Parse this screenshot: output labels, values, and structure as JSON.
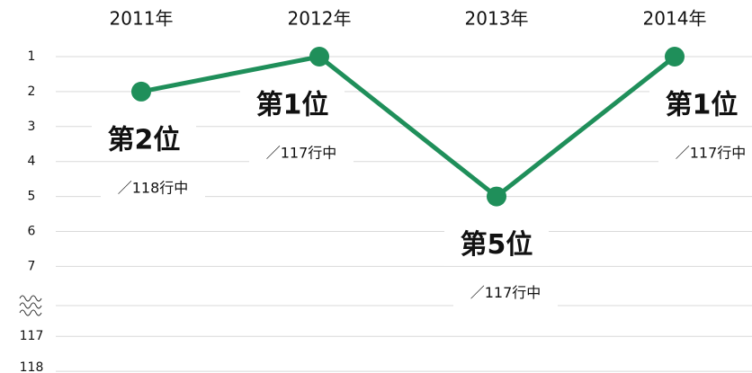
{
  "chart_data": {
    "type": "line",
    "categories": [
      "2011年",
      "2012年",
      "2013年",
      "2014年"
    ],
    "series": [
      {
        "color": "#1f8f5a",
        "values": [
          2,
          1,
          5,
          1
        ],
        "value_labels": [
          "第2位",
          "第1位",
          "第5位",
          "第1位"
        ]
      }
    ],
    "annotations": [
      "／118行中",
      "／117行中",
      "／117行中",
      "／117行中"
    ],
    "ylim": [
      1,
      118
    ],
    "yticks": [
      1,
      2,
      3,
      4,
      5,
      6,
      7,
      117,
      118
    ],
    "ybreak": [
      7,
      117
    ],
    "y_inverted": true,
    "grid": true
  }
}
